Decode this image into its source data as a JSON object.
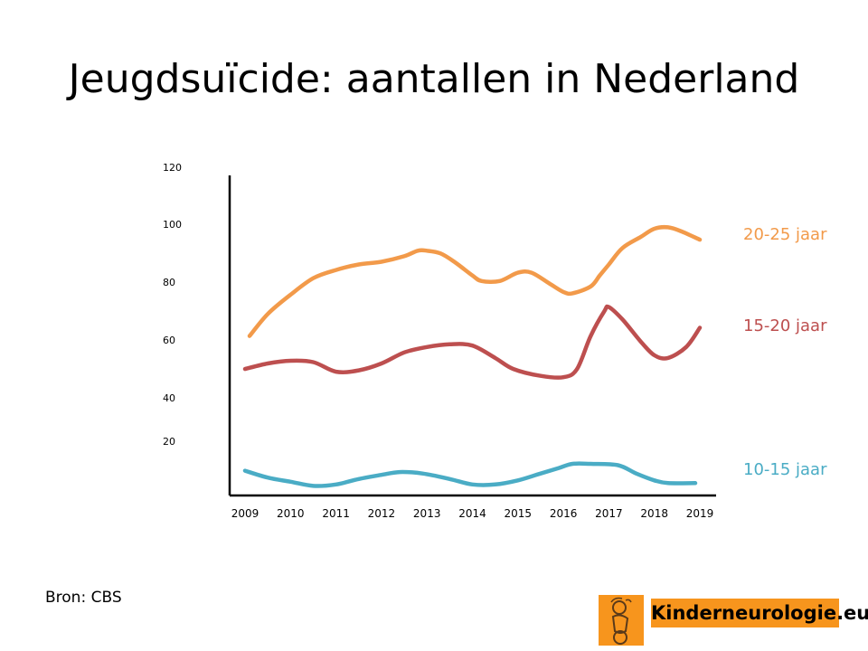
{
  "slide": {
    "title": "Jeugdsuïcide: aantallen in Nederland",
    "source": "Bron: CBS",
    "logo_text": "Kinderneurologie.eu",
    "logo_color": "#f7951d"
  },
  "chart_data": {
    "type": "line",
    "title": "",
    "xlabel": "",
    "ylabel": "",
    "x_ticks": [
      "2009",
      "2010",
      "2011",
      "2012",
      "2013",
      "2014",
      "2015",
      "2016",
      "2017",
      "2018",
      "2019"
    ],
    "y_ticks": [
      "120",
      "100",
      "80",
      "60",
      "40",
      "20"
    ],
    "grid": false,
    "legend": "labels at right end of lines",
    "series": [
      {
        "name": "20-25 jaar",
        "color": "#f29a4a",
        "points": [
          {
            "x": 2009.1,
            "y": 58
          },
          {
            "x": 2009.5,
            "y": 66
          },
          {
            "x": 2010.0,
            "y": 73
          },
          {
            "x": 2010.5,
            "y": 79
          },
          {
            "x": 2011.0,
            "y": 82
          },
          {
            "x": 2011.5,
            "y": 84
          },
          {
            "x": 2012.0,
            "y": 85
          },
          {
            "x": 2012.5,
            "y": 87
          },
          {
            "x": 2012.8,
            "y": 89
          },
          {
            "x": 2013.0,
            "y": 89
          },
          {
            "x": 2013.3,
            "y": 88
          },
          {
            "x": 2013.6,
            "y": 85
          },
          {
            "x": 2014.0,
            "y": 80
          },
          {
            "x": 2014.2,
            "y": 78
          },
          {
            "x": 2014.6,
            "y": 78
          },
          {
            "x": 2015.0,
            "y": 81
          },
          {
            "x": 2015.3,
            "y": 81
          },
          {
            "x": 2015.7,
            "y": 77
          },
          {
            "x": 2016.0,
            "y": 74
          },
          {
            "x": 2016.2,
            "y": 73.5
          },
          {
            "x": 2016.6,
            "y": 76
          },
          {
            "x": 2016.8,
            "y": 80
          },
          {
            "x": 2017.0,
            "y": 84
          },
          {
            "x": 2017.3,
            "y": 90
          },
          {
            "x": 2017.7,
            "y": 94
          },
          {
            "x": 2018.0,
            "y": 97
          },
          {
            "x": 2018.3,
            "y": 97.5
          },
          {
            "x": 2018.6,
            "y": 96
          },
          {
            "x": 2019.0,
            "y": 93
          }
        ]
      },
      {
        "name": "15-20 jaar",
        "color": "#bd4f4f",
        "points": [
          {
            "x": 2009.0,
            "y": 46
          },
          {
            "x": 2009.5,
            "y": 48
          },
          {
            "x": 2010.0,
            "y": 49
          },
          {
            "x": 2010.5,
            "y": 48.5
          },
          {
            "x": 2011.0,
            "y": 45
          },
          {
            "x": 2011.5,
            "y": 45.5
          },
          {
            "x": 2012.0,
            "y": 48
          },
          {
            "x": 2012.5,
            "y": 52
          },
          {
            "x": 2013.0,
            "y": 54
          },
          {
            "x": 2013.5,
            "y": 55
          },
          {
            "x": 2014.0,
            "y": 54.5
          },
          {
            "x": 2014.5,
            "y": 50
          },
          {
            "x": 2014.9,
            "y": 46
          },
          {
            "x": 2015.5,
            "y": 43.5
          },
          {
            "x": 2016.0,
            "y": 43
          },
          {
            "x": 2016.3,
            "y": 46
          },
          {
            "x": 2016.6,
            "y": 58
          },
          {
            "x": 2016.9,
            "y": 67
          },
          {
            "x": 2017.0,
            "y": 68.5
          },
          {
            "x": 2017.3,
            "y": 64
          },
          {
            "x": 2017.7,
            "y": 56
          },
          {
            "x": 2018.0,
            "y": 51
          },
          {
            "x": 2018.3,
            "y": 50
          },
          {
            "x": 2018.7,
            "y": 54
          },
          {
            "x": 2019.0,
            "y": 61
          }
        ]
      },
      {
        "name": "10-15 jaar",
        "color": "#4aacc5",
        "points": [
          {
            "x": 2009.0,
            "y": 9
          },
          {
            "x": 2009.5,
            "y": 6.5
          },
          {
            "x": 2010.0,
            "y": 5
          },
          {
            "x": 2010.5,
            "y": 3.5
          },
          {
            "x": 2011.0,
            "y": 4
          },
          {
            "x": 2011.5,
            "y": 6
          },
          {
            "x": 2012.0,
            "y": 7.5
          },
          {
            "x": 2012.4,
            "y": 8.5
          },
          {
            "x": 2012.9,
            "y": 8
          },
          {
            "x": 2013.5,
            "y": 6
          },
          {
            "x": 2014.0,
            "y": 4
          },
          {
            "x": 2014.5,
            "y": 4
          },
          {
            "x": 2015.0,
            "y": 5.5
          },
          {
            "x": 2015.5,
            "y": 8
          },
          {
            "x": 2015.9,
            "y": 10
          },
          {
            "x": 2016.2,
            "y": 11.5
          },
          {
            "x": 2016.6,
            "y": 11.5
          },
          {
            "x": 2017.2,
            "y": 11
          },
          {
            "x": 2017.6,
            "y": 8
          },
          {
            "x": 2018.0,
            "y": 5.5
          },
          {
            "x": 2018.3,
            "y": 4.5
          },
          {
            "x": 2018.9,
            "y": 4.5
          }
        ]
      }
    ]
  }
}
